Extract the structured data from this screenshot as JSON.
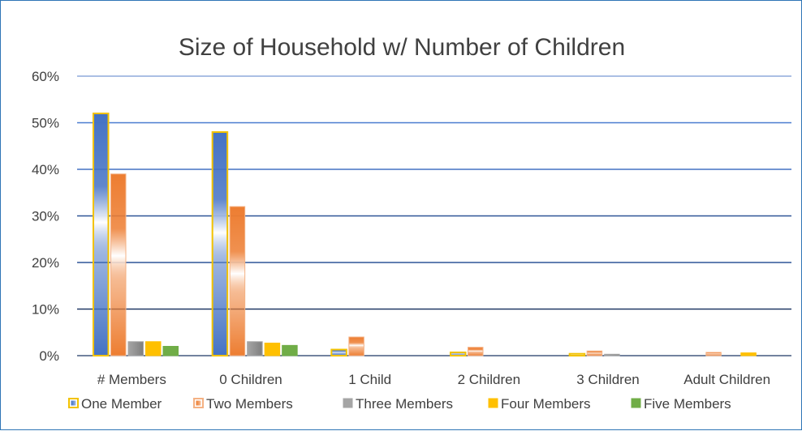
{
  "chart_data": {
    "type": "bar",
    "title": "Size of Household w/ Number of Children",
    "xlabel": "",
    "ylabel": "",
    "categories": [
      "# Members",
      "0 Children",
      "1 Child",
      "2 Children",
      "3 Children",
      "Adult Children"
    ],
    "series": [
      {
        "name": "One Member",
        "values": [
          52,
          48,
          1.3,
          0.7,
          0.4,
          0
        ],
        "fill_start": "#4472c4",
        "fill_end": "#ffffff",
        "border": "#f2c200",
        "style": "gradient-blue"
      },
      {
        "name": "Two Members",
        "values": [
          39,
          32,
          4,
          1.8,
          1,
          0.7
        ],
        "fill_start": "#ed7d31",
        "fill_end": "#ffffff",
        "border": "#f4b183",
        "style": "gradient-orange"
      },
      {
        "name": "Three Members",
        "values": [
          3,
          3,
          0,
          0,
          0.3,
          0
        ],
        "fill_start": "#a5a5a5",
        "fill_end": "#7f7f7f",
        "border": "#a5a5a5",
        "style": "gradient-gray"
      },
      {
        "name": "Four Members",
        "values": [
          3,
          2.7,
          0,
          0,
          0,
          0.6
        ],
        "fill_start": "#ffc000",
        "fill_end": "#ffc000",
        "border": "#ffc000",
        "style": "solid-gold"
      },
      {
        "name": "Five Members",
        "values": [
          2,
          2.2,
          0,
          0,
          0,
          0
        ],
        "fill_start": "#70ad47",
        "fill_end": "#70ad47",
        "border": "#70ad47",
        "style": "solid-green"
      }
    ],
    "ylim": [
      0,
      60
    ],
    "yticks": [
      "0%",
      "10%",
      "20%",
      "30%",
      "40%",
      "50%",
      "60%"
    ],
    "ytick_values": [
      0,
      10,
      20,
      30,
      40,
      50,
      60
    ],
    "y_format": "percent",
    "grid": true,
    "gridline_colors": [
      "#1f3864",
      "#203864",
      "#2e5597",
      "#2f5597",
      "#4472c4",
      "#4a7bd0",
      "#8faadc"
    ],
    "legend_position": "bottom"
  }
}
